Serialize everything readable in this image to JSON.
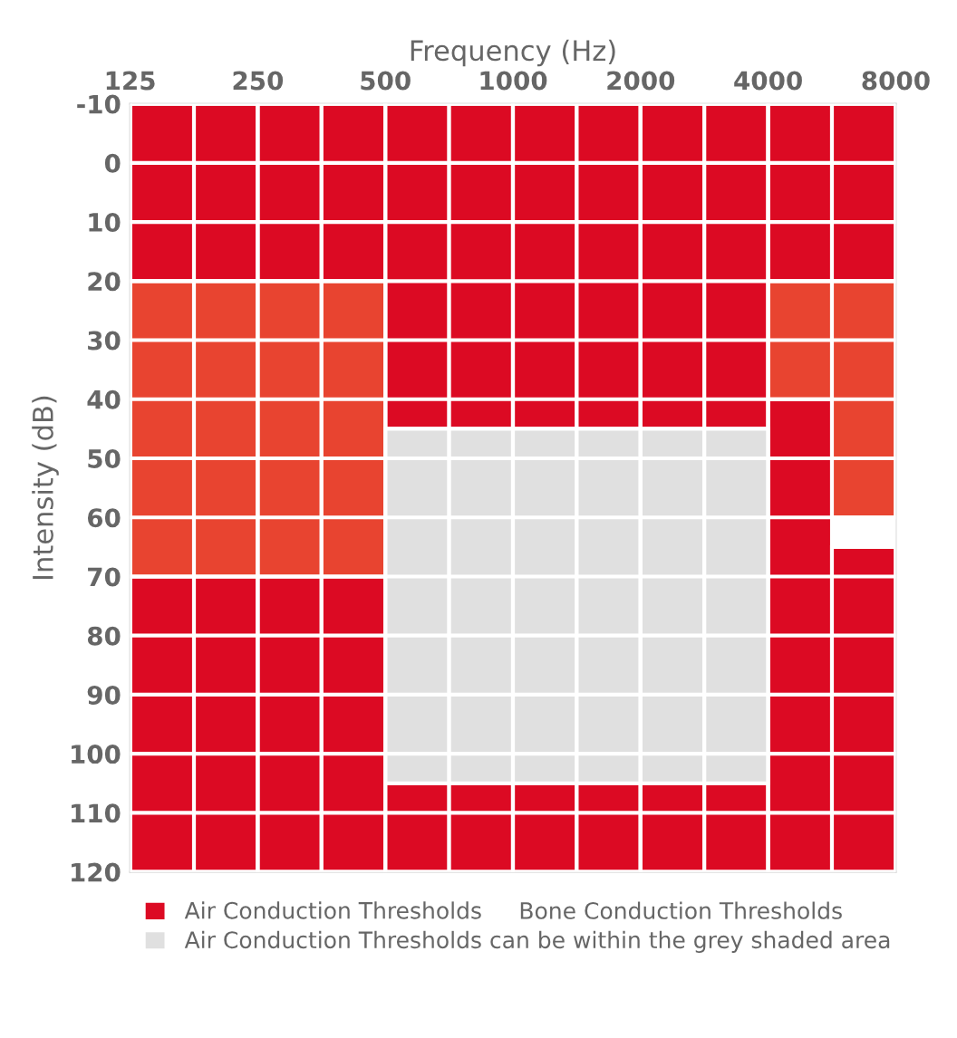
{
  "chart_data": {
    "type": "bar",
    "xlabel": "Frequency (Hz)",
    "ylabel": "Intensity (dB)",
    "x": [
      148.7,
      210.2,
      297.3,
      420.4,
      594.6,
      840.9,
      1189,
      1682,
      2378,
      3364,
      4757,
      6727
    ],
    "log": "x",
    "xlim": [
      125,
      8000
    ],
    "xticks": [
      125,
      250,
      500,
      1000,
      2000,
      4000,
      8000
    ],
    "ylim": [
      120,
      -10
    ],
    "yticks": [
      -10,
      0,
      10,
      20,
      30,
      40,
      50,
      60,
      70,
      80,
      90,
      100,
      110,
      120
    ],
    "grid": true,
    "legend": "bottom",
    "annotations": [
      "Bone Conduction Thresholds"
    ],
    "series": [
      {
        "color": "#dc0a23",
        "base": [
          -10,
          -10,
          -10,
          -10,
          -10,
          -10,
          -10,
          -10,
          -10,
          -10,
          -10,
          -10
        ],
        "values": [
          30,
          30,
          30,
          30,
          55,
          55,
          55,
          55,
          55,
          55,
          30,
          30
        ]
      },
      {
        "name": "Air Conduction Thresholds",
        "color": "#dc0a23",
        "base": [
          70,
          70,
          70,
          70,
          105,
          105,
          105,
          105,
          105,
          105,
          40,
          65
        ],
        "values": [
          50,
          50,
          50,
          50,
          15,
          15,
          15,
          15,
          15,
          15,
          80,
          55
        ]
      },
      {
        "color": "#e84430",
        "base": [
          20,
          20,
          20,
          20,
          null,
          null,
          null,
          null,
          null,
          null,
          20,
          20
        ],
        "values": [
          50,
          50,
          50,
          50,
          null,
          null,
          null,
          null,
          null,
          null,
          20,
          40
        ]
      },
      {
        "name": "Air Conduction Thresholds can be within the grey shaded area",
        "color": "#e0e0e0",
        "base": [
          null,
          null,
          null,
          null,
          45,
          45,
          45,
          45,
          45,
          45,
          null,
          null
        ],
        "values": [
          null,
          null,
          null,
          null,
          60,
          60,
          60,
          60,
          60,
          60,
          null,
          null
        ]
      }
    ]
  }
}
